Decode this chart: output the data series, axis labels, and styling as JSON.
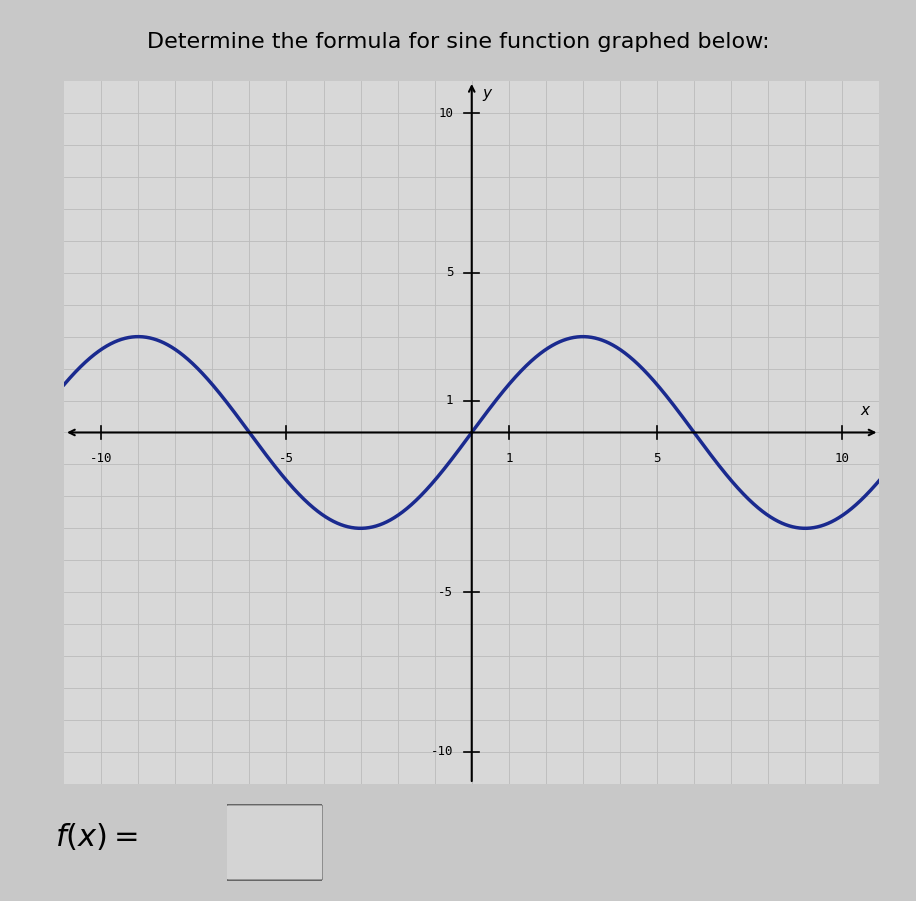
{
  "title": "Determine the formula for sine function graphed below:",
  "title_fontsize": 16,
  "amplitude": 3,
  "period": 12,
  "phase_shift": 0,
  "vertical_shift": 0,
  "xlim": [
    -11,
    11
  ],
  "ylim": [
    -11,
    11
  ],
  "x_ticks_labeled": [
    -10,
    -5,
    1,
    5,
    10
  ],
  "y_ticks_labeled": [
    -10,
    -5,
    1,
    5,
    10
  ],
  "grid_color": "#bbbbbb",
  "grid_linewidth": 0.6,
  "outer_bg_color": "#c8c8c8",
  "plot_bg_color": "#d8d8d8",
  "sine_color": "#1a2a8f",
  "sine_linewidth": 2.5,
  "fx_fontsize": 22,
  "xlabel": "x",
  "ylabel": "y",
  "axis_color": "black",
  "axis_lw": 1.5,
  "tick_label_fontsize": 9
}
